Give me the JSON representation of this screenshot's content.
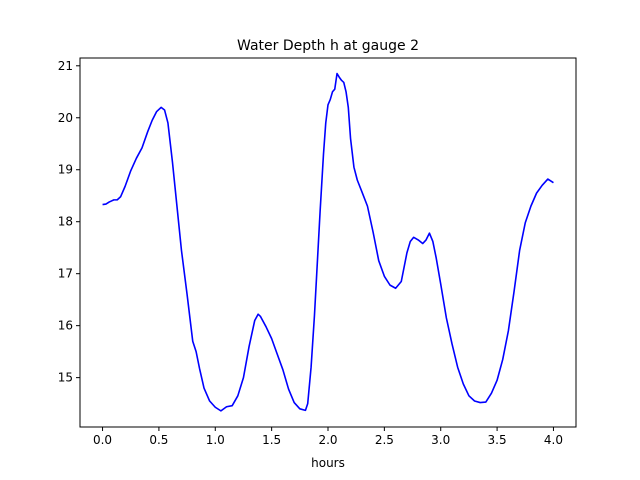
{
  "chart_data": {
    "type": "line",
    "title": "Water Depth h at gauge 2",
    "xlabel": "hours",
    "ylabel": "",
    "xlim": [
      -0.2,
      4.2
    ],
    "ylim": [
      14.05,
      21.15
    ],
    "xticks": [
      0.0,
      0.5,
      1.0,
      1.5,
      2.0,
      2.5,
      3.0,
      3.5,
      4.0
    ],
    "xtick_labels": [
      "0.0",
      "0.5",
      "1.0",
      "1.5",
      "2.0",
      "2.5",
      "3.0",
      "3.5",
      "4.0"
    ],
    "yticks": [
      15,
      16,
      17,
      18,
      19,
      20,
      21
    ],
    "ytick_labels": [
      "15",
      "16",
      "17",
      "18",
      "19",
      "20",
      "21"
    ],
    "grid": false,
    "color": "#0000ff",
    "series": [
      {
        "x": [
          0.0,
          0.03,
          0.06,
          0.08,
          0.1,
          0.13,
          0.16,
          0.2,
          0.25,
          0.3,
          0.35,
          0.4,
          0.44,
          0.48,
          0.5,
          0.52,
          0.55,
          0.58,
          0.62,
          0.66,
          0.7,
          0.75,
          0.8,
          0.83,
          0.86,
          0.9,
          0.95,
          1.0,
          1.05,
          1.1,
          1.15,
          1.2,
          1.25,
          1.3,
          1.35,
          1.38,
          1.4,
          1.45,
          1.5,
          1.55,
          1.6,
          1.65,
          1.7,
          1.75,
          1.8,
          1.82,
          1.85,
          1.88,
          1.9,
          1.93,
          1.96,
          1.98,
          2.0,
          2.02,
          2.04,
          2.06,
          2.08,
          2.1,
          2.12,
          2.14,
          2.16,
          2.18,
          2.2,
          2.23,
          2.26,
          2.3,
          2.35,
          2.4,
          2.45,
          2.5,
          2.55,
          2.6,
          2.65,
          2.7,
          2.73,
          2.76,
          2.8,
          2.84,
          2.87,
          2.9,
          2.93,
          2.96,
          3.0,
          3.05,
          3.1,
          3.15,
          3.2,
          3.25,
          3.3,
          3.35,
          3.4,
          3.45,
          3.5,
          3.55,
          3.6,
          3.65,
          3.7,
          3.75,
          3.8,
          3.85,
          3.9,
          3.95,
          4.0
        ],
        "values": [
          18.33,
          18.34,
          18.38,
          18.4,
          18.42,
          18.42,
          18.48,
          18.68,
          18.98,
          19.22,
          19.42,
          19.73,
          19.95,
          20.12,
          20.16,
          20.2,
          20.15,
          19.9,
          19.15,
          18.3,
          17.45,
          16.6,
          15.7,
          15.5,
          15.18,
          14.8,
          14.55,
          14.43,
          14.36,
          14.44,
          14.46,
          14.65,
          15.0,
          15.6,
          16.1,
          16.22,
          16.18,
          15.98,
          15.75,
          15.45,
          15.15,
          14.78,
          14.52,
          14.4,
          14.37,
          14.5,
          15.2,
          16.2,
          17.0,
          18.2,
          19.3,
          19.9,
          20.25,
          20.35,
          20.5,
          20.55,
          20.85,
          20.78,
          20.72,
          20.68,
          20.5,
          20.2,
          19.6,
          19.05,
          18.8,
          18.58,
          18.3,
          17.8,
          17.25,
          16.95,
          16.78,
          16.72,
          16.85,
          17.4,
          17.62,
          17.7,
          17.65,
          17.58,
          17.65,
          17.78,
          17.62,
          17.3,
          16.8,
          16.15,
          15.65,
          15.2,
          14.88,
          14.65,
          14.55,
          14.52,
          14.53,
          14.7,
          14.95,
          15.35,
          15.9,
          16.65,
          17.45,
          17.98,
          18.3,
          18.55,
          18.7,
          18.82,
          18.75
        ]
      }
    ]
  }
}
